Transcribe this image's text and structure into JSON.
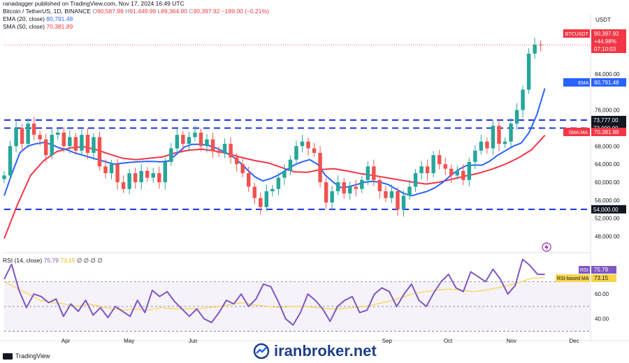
{
  "header": {
    "publisher": "ranadagger published on TradingView.com, Nov 17, 2024 16:49 UTC",
    "symbol": "Bitcoin / TetherUS, 1D, BINANCE",
    "ohlc_open_label": "O",
    "ohlc_open": "90,587.98",
    "ohlc_high_label": "H",
    "ohlc_high": "91,449.99",
    "ohlc_low_label": "L",
    "ohlc_low": "89,364.00",
    "ohlc_close_label": "C",
    "ohlc_close": "90,397.92",
    "ohlc_change": "−189.00 (−0.21%)",
    "ema_label": "EMA (20, close)",
    "ema_value": "80,791.48",
    "sma_label": "SMA (50, close)",
    "sma_value": "70,381.89",
    "rsi_label": "RSI (14, close)",
    "rsi_value": "75.79",
    "rsi_ma_value": "73.15",
    "rsi_extra": "∅ ∅ ∅ ∅"
  },
  "footer": {
    "tv_brand": "TradingView",
    "watermark": "iranbroker.net"
  },
  "chart_data": {
    "type": "candlestick",
    "price_axis": {
      "currency": "USDT",
      "ticks": [
        48000,
        52000,
        56000,
        60000,
        64000,
        68000,
        76000,
        84000,
        92000
      ],
      "tick_labels": [
        "48,000.00",
        "52,000.00",
        "56,000.00",
        "60,000.00",
        "64,000.00",
        "68,000.00",
        "76,000.00",
        "84,000.00",
        "92,000.00"
      ],
      "ylim": [
        45000,
        94500
      ]
    },
    "time_axis": {
      "labels": [
        "Apr",
        "May",
        "Jun",
        "Sep",
        "Oct",
        "Nov",
        "Dec"
      ],
      "positions": [
        0.105,
        0.213,
        0.322,
        0.653,
        0.757,
        0.865,
        0.972
      ]
    },
    "horizontal_levels": [
      {
        "value": 73777,
        "label": "73,777.00"
      },
      {
        "value": 72000,
        "label": "72,000.00"
      },
      {
        "value": 54000,
        "label": "54,000.00"
      }
    ],
    "price_tags": [
      {
        "label": "BTCUSDT",
        "lines": [
          "90,397.92",
          "+44.98%",
          "07:10:03"
        ],
        "color": "#f23645"
      },
      {
        "label": "EMA",
        "lines": [
          "80,791.48"
        ],
        "color": "#2962ff"
      },
      {
        "label": "SMA:MA",
        "lines": [
          "70,381.89"
        ],
        "color": "#f23645"
      }
    ],
    "close_series": [
      61500,
      68000,
      72000,
      68500,
      73000,
      70500,
      69500,
      66000,
      70500,
      71000,
      68000,
      70000,
      67000,
      70500,
      66500,
      70000,
      63500,
      62000,
      64000,
      60000,
      58500,
      62000,
      60000,
      62500,
      61000,
      62000,
      60000,
      64500,
      67500,
      70500,
      68500,
      70000,
      71000,
      68000,
      69500,
      67000,
      66500,
      68500,
      65500,
      64000,
      62000,
      59000,
      56500,
      54500,
      58000,
      58500,
      61000,
      62500,
      65000,
      68000,
      69000,
      67500,
      66500,
      60000,
      55500,
      58000,
      60000,
      57500,
      59000,
      58500,
      60500,
      63500,
      60500,
      58000,
      56500,
      58000,
      54000,
      57000,
      59000,
      62000,
      63500,
      62000,
      66000,
      64000,
      63000,
      61500,
      62500,
      60500,
      64500,
      67000,
      69000,
      67500,
      72500,
      68500,
      69000,
      73000,
      76000,
      80500,
      88500,
      90500,
      90400
    ],
    "ema20": [
      57000,
      62000,
      66500,
      68000,
      68500,
      68800,
      68400,
      67600,
      67200,
      66500,
      66000,
      65500,
      65000,
      64500,
      64000,
      64200,
      64400,
      64500,
      64600,
      64600,
      64500,
      64700,
      66200,
      67800,
      68400,
      68400,
      68200,
      67600,
      66800,
      65900,
      64500,
      62800,
      61200,
      60300,
      60800,
      61600,
      62700,
      63800,
      64500,
      65000,
      64000,
      61500,
      60000,
      58800,
      59000,
      59500,
      60000,
      60200,
      60000,
      59500,
      58500,
      57500,
      57000,
      57500,
      58000,
      58800,
      60000,
      61500,
      62800,
      63700,
      63800,
      63800,
      64700,
      66000,
      67000,
      68000,
      68700,
      71000,
      75000,
      80800
    ],
    "sma50": [
      47500,
      55000,
      61500,
      64800,
      66800,
      67600,
      67900,
      67200,
      66200,
      65300,
      65000,
      65300,
      65600,
      66500,
      67100,
      67300,
      66900,
      66300,
      65500,
      64800,
      64300,
      63300,
      62300,
      62200,
      62800,
      63000,
      62500,
      61900,
      61500,
      61000,
      60500,
      60000,
      59600,
      60000,
      60700,
      61400,
      62000,
      62900,
      64000,
      65400,
      67200,
      70400
    ],
    "rsi_axis": {
      "ticks": [
        40,
        60,
        80
      ],
      "tick_labels": [
        "40.00",
        "60.00",
        "80.00"
      ],
      "bands": [
        70,
        50,
        30
      ],
      "ylim": [
        28,
        90
      ]
    },
    "rsi": [
      72,
      84,
      63,
      49,
      60,
      58,
      53,
      56,
      42,
      52,
      46,
      55,
      43,
      49,
      41,
      50,
      46,
      42,
      55,
      45,
      63,
      58,
      62,
      54,
      48,
      42,
      48,
      40,
      37,
      45,
      55,
      52,
      60,
      50,
      56,
      68,
      66,
      54,
      40,
      35,
      45,
      60,
      55,
      48,
      38,
      50,
      55,
      58,
      45,
      47,
      60,
      65,
      62,
      50,
      60,
      68,
      55,
      50,
      61,
      70,
      76,
      65,
      62,
      78,
      74,
      70,
      80,
      72,
      60,
      67,
      88,
      83,
      76,
      75.8
    ],
    "rsi_ma": [
      70,
      65,
      60,
      55,
      53,
      52,
      50,
      52,
      50,
      48,
      47,
      48,
      47,
      49,
      48,
      48,
      48,
      49,
      50,
      52,
      53,
      51,
      50,
      49,
      50,
      50,
      49,
      48,
      48,
      49,
      50,
      52,
      54,
      57,
      60,
      62,
      63,
      64,
      63,
      62,
      63,
      65,
      67,
      70,
      73,
      73.15
    ],
    "series": [
      {
        "name": "EMA (20, close)",
        "color": "#2962ff"
      },
      {
        "name": "SMA (50, close)",
        "color": "#f23645"
      },
      {
        "name": "RSI (14, close)",
        "color": "#7e57c2"
      },
      {
        "name": "RSI-based MA",
        "color": "#f7d44d"
      }
    ],
    "labels": {
      "rsi_tag": "RSI",
      "rsi_tag_value": "75.79",
      "rsi_ma_tag": "RSI-based MA",
      "rsi_ma_tag_value": "73.15"
    },
    "colors": {
      "up": "#26a69a",
      "down": "#ef5350",
      "level": "#1a33e6",
      "rsi_band_fill": "#ede7f6"
    }
  }
}
